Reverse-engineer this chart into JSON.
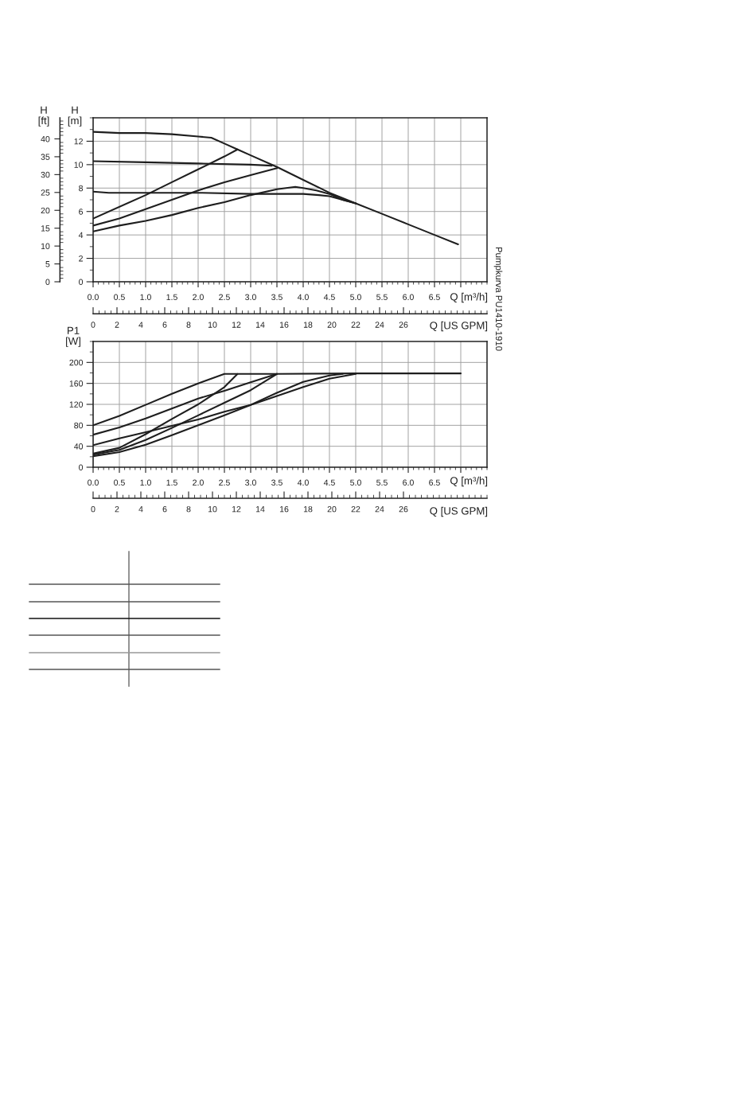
{
  "chart_data": [
    {
      "type": "line",
      "xlabel": "Q [m³/h]",
      "x2label": "Q [US GPM]",
      "ylabel": "H\n[m]",
      "y2label": "H\n[ft]",
      "annotations": [
        "Pumpkurva PU1410-1910"
      ],
      "xlim": [
        0,
        7.5
      ],
      "xticks": [
        {
          "value": 0,
          "label": "0.0"
        },
        0.5,
        {
          "value": 1,
          "label": "1.0"
        },
        1.5,
        {
          "value": 2,
          "label": "2.0"
        },
        2.5,
        {
          "value": 3,
          "label": "3.0"
        },
        3.5,
        {
          "value": 4,
          "label": "4.0"
        },
        4.5,
        {
          "value": 5,
          "label": "5.0"
        },
        5.5,
        {
          "value": 6,
          "label": "6.0"
        },
        6.5,
        {
          "value": 7,
          "label": null
        }
      ],
      "x2lim": [
        0,
        33
      ],
      "x2ticks": [
        0,
        2,
        4,
        6,
        8,
        10,
        12,
        14,
        16,
        18,
        20,
        22,
        24,
        26
      ],
      "ylim": [
        0,
        14
      ],
      "yticks": [
        0,
        2,
        4,
        6,
        8,
        10,
        12
      ],
      "y2lim": [
        0,
        45.9
      ],
      "y2ticks": [
        0,
        5,
        10,
        15,
        20,
        25,
        30,
        35,
        40
      ],
      "grid": true,
      "series": [
        {
          "color": "#1e1e1e",
          "x": [
            0,
            0.5,
            1,
            1.5,
            2,
            2.25,
            2.5,
            2.75,
            3,
            3.5,
            4,
            4.5,
            5,
            5.5,
            6,
            6.5,
            6.95
          ],
          "values": [
            12.8,
            12.7,
            12.7,
            12.6,
            12.4,
            12.3,
            11.8,
            11.3,
            10.8,
            9.8,
            8.7,
            7.6,
            6.7,
            5.8,
            4.9,
            4.0,
            3.2
          ]
        },
        {
          "color": "#1e1e1e",
          "x": [
            0,
            1,
            2,
            3,
            3.4
          ],
          "values": [
            10.3,
            10.2,
            10.1,
            10.0,
            9.9
          ]
        },
        {
          "color": "#1e1e1e",
          "x": [
            0,
            1,
            1.5,
            2,
            2.5,
            2.75
          ],
          "values": [
            5.4,
            7.4,
            8.5,
            9.6,
            10.7,
            11.3
          ]
        },
        {
          "color": "#1e1e1e",
          "x": [
            0,
            0.5,
            1,
            1.5,
            2,
            2.5,
            3,
            3.5
          ],
          "values": [
            4.8,
            5.4,
            6.2,
            7.0,
            7.8,
            8.5,
            9.1,
            9.7
          ]
        },
        {
          "color": "#1e1e1e",
          "x": [
            0,
            0.3,
            1,
            2,
            3,
            3.5,
            4,
            4.3,
            4.5,
            4.75,
            5
          ],
          "values": [
            7.7,
            7.6,
            7.6,
            7.6,
            7.5,
            7.5,
            7.5,
            7.4,
            7.3,
            7.0,
            6.7
          ]
        },
        {
          "color": "#1e1e1e",
          "x": [
            0,
            0.5,
            1,
            1.5,
            2,
            2.5,
            3,
            3.5,
            3.85,
            4,
            4.25,
            4.5,
            4.75,
            5
          ],
          "values": [
            4.3,
            4.8,
            5.2,
            5.7,
            6.3,
            6.8,
            7.4,
            7.9,
            8.1,
            8.0,
            7.8,
            7.5,
            7.0,
            6.7
          ]
        }
      ]
    },
    {
      "type": "line",
      "xlabel": "Q [m³/h]",
      "x2label": "Q [US GPM]",
      "ylabel": "P1\n[W]",
      "xlim": [
        0,
        7.5
      ],
      "xticks": [
        {
          "value": 0,
          "label": "0.0"
        },
        0.5,
        {
          "value": 1,
          "label": "1.0"
        },
        1.5,
        {
          "value": 2,
          "label": "2.0"
        },
        2.5,
        {
          "value": 3,
          "label": "3.0"
        },
        3.5,
        {
          "value": 4,
          "label": "4.0"
        },
        4.5,
        {
          "value": 5,
          "label": "5.0"
        },
        5.5,
        {
          "value": 6,
          "label": "6.0"
        },
        6.5,
        {
          "value": 7,
          "label": null
        }
      ],
      "x2lim": [
        0,
        33
      ],
      "x2ticks": [
        0,
        2,
        4,
        6,
        8,
        10,
        12,
        14,
        16,
        18,
        20,
        22,
        24,
        26
      ],
      "ylim": [
        0,
        240
      ],
      "yticks": [
        0,
        40,
        80,
        120,
        160,
        200
      ],
      "grid": true,
      "series": [
        {
          "color": "#1e1e1e",
          "x": [
            0,
            0.5,
            1,
            1.5,
            2,
            2.5,
            3.5,
            5,
            7
          ],
          "values": [
            80,
            98,
            119,
            140,
            160,
            178,
            178,
            179,
            179
          ]
        },
        {
          "color": "#1e1e1e",
          "x": [
            0,
            0.5,
            1,
            1.5,
            2,
            2.5,
            3,
            3.5
          ],
          "values": [
            62,
            76,
            93,
            112,
            131,
            146,
            162,
            178
          ]
        },
        {
          "color": "#1e1e1e",
          "x": [
            0,
            0.5,
            1,
            1.5,
            2,
            2.5,
            2.75
          ],
          "values": [
            26,
            37,
            63,
            92,
            120,
            153,
            178
          ]
        },
        {
          "color": "#1e1e1e",
          "x": [
            0,
            0.5,
            1,
            1.5,
            2,
            2.5,
            3,
            3.5
          ],
          "values": [
            24,
            33,
            52,
            75,
            99,
            123,
            147,
            178
          ]
        },
        {
          "color": "#1e1e1e",
          "x": [
            0,
            0.5,
            1,
            1.5,
            2,
            2.5,
            3,
            3.5,
            4,
            4.5,
            5
          ],
          "values": [
            42,
            55,
            67,
            79,
            91,
            106,
            119,
            136,
            153,
            169,
            178
          ]
        },
        {
          "color": "#1e1e1e",
          "x": [
            0,
            0.5,
            1,
            1.5,
            2,
            2.5,
            3,
            3.5,
            4,
            4.5,
            4.75
          ],
          "values": [
            21,
            29,
            43,
            61,
            80,
            99,
            119,
            142,
            163,
            175,
            178
          ]
        }
      ]
    }
  ]
}
